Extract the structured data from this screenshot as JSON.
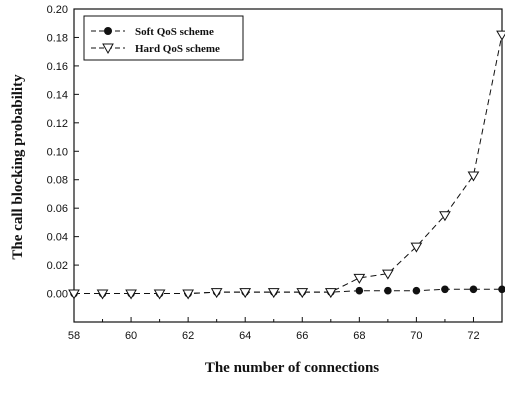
{
  "chart_data": {
    "type": "line",
    "title": "",
    "xlabel": "The number of connections",
    "ylabel": "The call blocking probability",
    "xlim": [
      58,
      73
    ],
    "ylim": [
      -0.02,
      0.2
    ],
    "x_ticks": [
      "58",
      "60",
      "62",
      "64",
      "66",
      "68",
      "70",
      "72"
    ],
    "y_ticks": [
      "0.00",
      "0.02",
      "0.04",
      "0.06",
      "0.08",
      "0.10",
      "0.12",
      "0.14",
      "0.16",
      "0.18",
      "0.20"
    ],
    "grid": false,
    "legend_position": "top-left",
    "series": [
      {
        "name": "Soft QoS scheme",
        "marker": "filled-circle",
        "line": "dashed",
        "x": [
          58,
          59,
          60,
          61,
          62,
          63,
          64,
          65,
          66,
          67,
          68,
          69,
          70,
          71,
          72,
          73
        ],
        "y": [
          0.0,
          0.0,
          0.0,
          0.0,
          0.0,
          0.001,
          0.001,
          0.001,
          0.001,
          0.001,
          0.002,
          0.002,
          0.002,
          0.003,
          0.003,
          0.003
        ]
      },
      {
        "name": "Hard QoS scheme",
        "marker": "open-triangle-down",
        "line": "dashed",
        "x": [
          58,
          59,
          60,
          61,
          62,
          63,
          64,
          65,
          66,
          67,
          68,
          69,
          70,
          71,
          72,
          73
        ],
        "y": [
          0.0,
          0.0,
          0.0,
          0.0,
          0.0,
          0.001,
          0.001,
          0.001,
          0.001,
          0.001,
          0.011,
          0.014,
          0.033,
          0.055,
          0.083,
          0.182
        ]
      }
    ]
  }
}
